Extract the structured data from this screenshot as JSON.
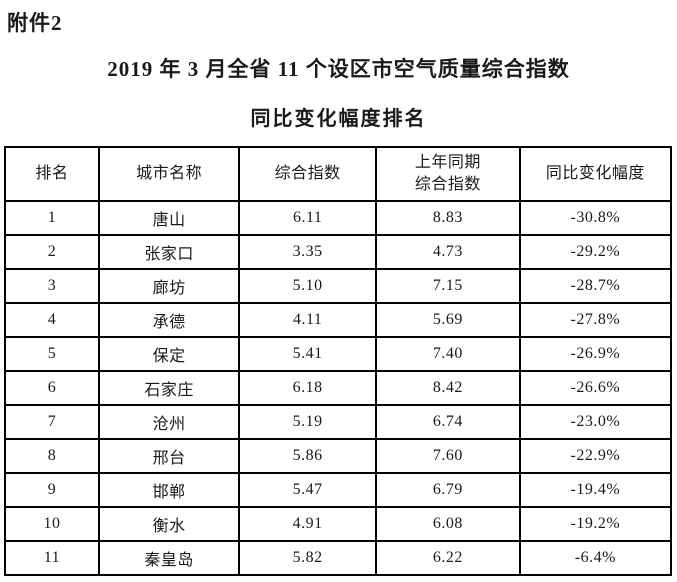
{
  "page": {
    "attachment_label": "附件2",
    "title_line1": "2019 年 3 月全省 11 个设区市空气质量综合指数",
    "title_line2": "同比变化幅度排名"
  },
  "colors": {
    "background": "#ffffff",
    "text": "#1a1a1a",
    "table_border": "#000000"
  },
  "table": {
    "headers": [
      "排名",
      "城市名称",
      "综合指数",
      "上年同期\n综合指数",
      "同比变化幅度"
    ],
    "column_names": [
      "rank-cell",
      "city-name-cell",
      "composite-index-cell",
      "previous-year-index-cell",
      "yoy-change-cell"
    ],
    "rows": [
      [
        "1",
        "唐山",
        "6.11",
        "8.83",
        "-30.8%"
      ],
      [
        "2",
        "张家口",
        "3.35",
        "4.73",
        "-29.2%"
      ],
      [
        "3",
        "廊坊",
        "5.10",
        "7.15",
        "-28.7%"
      ],
      [
        "4",
        "承德",
        "4.11",
        "5.69",
        "-27.8%"
      ],
      [
        "5",
        "保定",
        "5.41",
        "7.40",
        "-26.9%"
      ],
      [
        "6",
        "石家庄",
        "6.18",
        "8.42",
        "-26.6%"
      ],
      [
        "7",
        "沧州",
        "5.19",
        "6.74",
        "-23.0%"
      ],
      [
        "8",
        "邢台",
        "5.86",
        "7.60",
        "-22.9%"
      ],
      [
        "9",
        "邯郸",
        "5.47",
        "6.79",
        "-19.4%"
      ],
      [
        "10",
        "衡水",
        "4.91",
        "6.08",
        "-19.2%"
      ],
      [
        "11",
        "秦皇岛",
        "5.82",
        "6.22",
        "-6.4%"
      ]
    ]
  }
}
